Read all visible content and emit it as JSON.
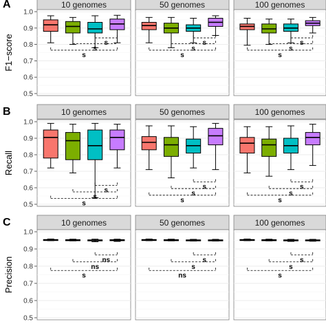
{
  "figure": {
    "panel_letters": [
      "A",
      "B",
      "C"
    ],
    "series_colors": [
      "#f8766d",
      "#7cae00",
      "#00bfc4",
      "#c77cff"
    ]
  },
  "chart_data": [
    {
      "type": "box",
      "panel": "A",
      "ylabel": "F1−score",
      "ylim": [
        0.5,
        1.0
      ],
      "yticks": [
        0.5,
        0.6,
        0.7,
        0.8,
        0.9,
        1.0
      ],
      "ytick_labels": [
        "0.5",
        "0.6",
        "0.7",
        "0.8",
        "0.9",
        "1.0"
      ],
      "facets": [
        {
          "label": "10 genomes",
          "boxes": [
            {
              "min": 0.81,
              "q1": 0.88,
              "median": 0.92,
              "q3": 0.95,
              "max": 0.975
            },
            {
              "min": 0.8,
              "q1": 0.87,
              "median": 0.91,
              "q3": 0.94,
              "max": 0.965
            },
            {
              "min": 0.78,
              "q1": 0.87,
              "median": 0.895,
              "q3": 0.935,
              "max": 0.975
            },
            {
              "min": 0.81,
              "q1": 0.89,
              "median": 0.925,
              "q3": 0.955,
              "max": 0.978
            }
          ],
          "comparisons": [
            {
              "from": 3,
              "to": 4,
              "level": 0.84,
              "label": "s"
            },
            {
              "from": 2,
              "to": 4,
              "level": 0.805,
              "label": "s"
            },
            {
              "from": 1,
              "to": 4,
              "level": 0.765,
              "label": "s"
            }
          ]
        },
        {
          "label": "50 genomes",
          "boxes": [
            {
              "min": 0.81,
              "q1": 0.89,
              "median": 0.915,
              "q3": 0.935,
              "max": 0.965
            },
            {
              "min": 0.78,
              "q1": 0.87,
              "median": 0.9,
              "q3": 0.93,
              "max": 0.965
            },
            {
              "min": 0.81,
              "q1": 0.88,
              "median": 0.9,
              "q3": 0.92,
              "max": 0.96
            },
            {
              "min": 0.855,
              "q1": 0.91,
              "median": 0.935,
              "q3": 0.96,
              "max": 0.975
            }
          ],
          "comparisons": [
            {
              "from": 3,
              "to": 4,
              "level": 0.84,
              "label": "s"
            },
            {
              "from": 2,
              "to": 4,
              "level": 0.805,
              "label": "s"
            },
            {
              "from": 1,
              "to": 4,
              "level": 0.765,
              "label": "s"
            }
          ]
        },
        {
          "label": "100 genomes",
          "boxes": [
            {
              "min": 0.795,
              "q1": 0.89,
              "median": 0.91,
              "q3": 0.925,
              "max": 0.96
            },
            {
              "min": 0.8,
              "q1": 0.87,
              "median": 0.895,
              "q3": 0.925,
              "max": 0.955
            },
            {
              "min": 0.81,
              "q1": 0.88,
              "median": 0.9,
              "q3": 0.925,
              "max": 0.955
            },
            {
              "min": 0.87,
              "q1": 0.915,
              "median": 0.93,
              "q3": 0.945,
              "max": 0.965
            }
          ],
          "comparisons": [
            {
              "from": 3,
              "to": 4,
              "level": 0.84,
              "label": "s"
            },
            {
              "from": 2,
              "to": 4,
              "level": 0.805,
              "label": "s"
            },
            {
              "from": 1,
              "to": 4,
              "level": 0.765,
              "label": "s"
            }
          ]
        }
      ]
    },
    {
      "type": "box",
      "panel": "B",
      "ylabel": "Recall",
      "ylim": [
        0.5,
        1.0
      ],
      "yticks": [
        0.5,
        0.6,
        0.7,
        0.8,
        0.9,
        1.0
      ],
      "ytick_labels": [
        "0.5",
        "0.6",
        "0.7",
        "0.8",
        "0.9",
        "1.0"
      ],
      "facets": [
        {
          "label": "10 genomes",
          "boxes": [
            {
              "min": 0.72,
              "q1": 0.78,
              "median": 0.905,
              "q3": 0.95,
              "max": 0.99
            },
            {
              "min": 0.69,
              "q1": 0.77,
              "median": 0.885,
              "q3": 0.935,
              "max": 0.985
            },
            {
              "min": 0.54,
              "q1": 0.77,
              "median": 0.855,
              "q3": 0.95,
              "max": 0.99
            },
            {
              "min": 0.72,
              "q1": 0.83,
              "median": 0.905,
              "q3": 0.95,
              "max": 0.985
            }
          ],
          "comparisons": [
            {
              "from": 3,
              "to": 4,
              "level": 0.615,
              "label": "s"
            },
            {
              "from": 2,
              "to": 4,
              "level": 0.575,
              "label": "s"
            },
            {
              "from": 1,
              "to": 4,
              "level": 0.535,
              "label": "s"
            }
          ]
        },
        {
          "label": "50 genomes",
          "boxes": [
            {
              "min": 0.71,
              "q1": 0.83,
              "median": 0.875,
              "q3": 0.91,
              "max": 0.975
            },
            {
              "min": 0.66,
              "q1": 0.79,
              "median": 0.86,
              "q3": 0.905,
              "max": 0.975
            },
            {
              "min": 0.72,
              "q1": 0.81,
              "median": 0.855,
              "q3": 0.895,
              "max": 0.97
            },
            {
              "min": 0.71,
              "q1": 0.86,
              "median": 0.915,
              "q3": 0.96,
              "max": 0.99
            }
          ],
          "comparisons": [
            {
              "from": 3,
              "to": 4,
              "level": 0.635,
              "label": "s"
            },
            {
              "from": 2,
              "to": 4,
              "level": 0.595,
              "label": "s"
            },
            {
              "from": 1,
              "to": 4,
              "level": 0.555,
              "label": "s"
            }
          ]
        },
        {
          "label": "100 genomes",
          "boxes": [
            {
              "min": 0.69,
              "q1": 0.81,
              "median": 0.87,
              "q3": 0.905,
              "max": 0.97
            },
            {
              "min": 0.67,
              "q1": 0.79,
              "median": 0.86,
              "q3": 0.895,
              "max": 0.97
            },
            {
              "min": 0.71,
              "q1": 0.81,
              "median": 0.855,
              "q3": 0.9,
              "max": 0.975
            },
            {
              "min": 0.735,
              "q1": 0.86,
              "median": 0.905,
              "q3": 0.935,
              "max": 0.985
            }
          ],
          "comparisons": [
            {
              "from": 3,
              "to": 4,
              "level": 0.635,
              "label": "s"
            },
            {
              "from": 2,
              "to": 4,
              "level": 0.595,
              "label": "s"
            },
            {
              "from": 1,
              "to": 4,
              "level": 0.555,
              "label": "s"
            }
          ]
        }
      ]
    },
    {
      "type": "box",
      "panel": "C",
      "ylabel": "Precision",
      "ylim": [
        0.5,
        1.0
      ],
      "yticks": [
        0.5,
        0.6,
        0.7,
        0.8,
        0.9,
        1.0
      ],
      "ytick_labels": [
        "0.5",
        "0.6",
        "0.7",
        "0.8",
        "0.9",
        "1.0"
      ],
      "facets": [
        {
          "label": "10 genomes",
          "boxes": [
            {
              "min": 0.948,
              "q1": 0.951,
              "median": 0.953,
              "q3": 0.955,
              "max": 0.958
            },
            {
              "min": 0.947,
              "q1": 0.95,
              "median": 0.952,
              "q3": 0.954,
              "max": 0.957
            },
            {
              "min": 0.942,
              "q1": 0.947,
              "median": 0.95,
              "q3": 0.953,
              "max": 0.957
            },
            {
              "min": 0.944,
              "q1": 0.948,
              "median": 0.951,
              "q3": 0.954,
              "max": 0.957
            }
          ],
          "comparisons": [
            {
              "from": 3,
              "to": 4,
              "level": 0.865,
              "label": "ns"
            },
            {
              "from": 2,
              "to": 4,
              "level": 0.825,
              "label": "ns"
            },
            {
              "from": 1,
              "to": 4,
              "level": 0.775,
              "label": "s"
            }
          ]
        },
        {
          "label": "50 genomes",
          "boxes": [
            {
              "min": 0.948,
              "q1": 0.951,
              "median": 0.953,
              "q3": 0.955,
              "max": 0.958
            },
            {
              "min": 0.947,
              "q1": 0.95,
              "median": 0.952,
              "q3": 0.954,
              "max": 0.957
            },
            {
              "min": 0.946,
              "q1": 0.949,
              "median": 0.951,
              "q3": 0.953,
              "max": 0.956
            },
            {
              "min": 0.946,
              "q1": 0.949,
              "median": 0.951,
              "q3": 0.953,
              "max": 0.956
            }
          ],
          "comparisons": [
            {
              "from": 3,
              "to": 4,
              "level": 0.865,
              "label": "s"
            },
            {
              "from": 2,
              "to": 4,
              "level": 0.825,
              "label": "s"
            },
            {
              "from": 1,
              "to": 4,
              "level": 0.775,
              "label": "ns"
            }
          ]
        },
        {
          "label": "100 genomes",
          "boxes": [
            {
              "min": 0.948,
              "q1": 0.951,
              "median": 0.953,
              "q3": 0.955,
              "max": 0.958
            },
            {
              "min": 0.947,
              "q1": 0.95,
              "median": 0.952,
              "q3": 0.954,
              "max": 0.957
            },
            {
              "min": 0.944,
              "q1": 0.948,
              "median": 0.95,
              "q3": 0.953,
              "max": 0.956
            },
            {
              "min": 0.945,
              "q1": 0.948,
              "median": 0.951,
              "q3": 0.953,
              "max": 0.956
            }
          ],
          "comparisons": [
            {
              "from": 3,
              "to": 4,
              "level": 0.865,
              "label": "s"
            },
            {
              "from": 2,
              "to": 4,
              "level": 0.825,
              "label": "s"
            },
            {
              "from": 1,
              "to": 4,
              "level": 0.775,
              "label": "s"
            }
          ]
        }
      ]
    }
  ]
}
